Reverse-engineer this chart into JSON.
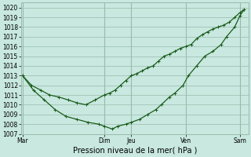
{
  "bg_color": "#c8e8e0",
  "plot_bg_color": "#c8e8e0",
  "line_color": "#1a5c1a",
  "grid_color": "#99bbaa",
  "xlabel": "Pression niveau de la mer( hPa )",
  "ylim": [
    1007,
    1020.5
  ],
  "ytick_vals": [
    1007,
    1008,
    1009,
    1010,
    1011,
    1012,
    1013,
    1014,
    1015,
    1016,
    1017,
    1018,
    1019,
    1020
  ],
  "xtick_labels": [
    "Mar",
    "",
    "Dim",
    "Jeu",
    "",
    "Ven",
    "",
    "Sam"
  ],
  "xtick_positions": [
    0,
    1.5,
    3,
    4,
    5,
    6,
    7,
    8
  ],
  "vlines_x": [
    0,
    3,
    4,
    6,
    8
  ],
  "line1_x": [
    0.0,
    0.33,
    0.67,
    1.0,
    1.33,
    1.67,
    2.0,
    2.33,
    2.67,
    3.0,
    3.2,
    3.4,
    3.6,
    3.8,
    4.0,
    4.2,
    4.4,
    4.6,
    4.8,
    5.0,
    5.2,
    5.4,
    5.6,
    5.8,
    6.0,
    6.2,
    6.4,
    6.6,
    6.8,
    7.0,
    7.2,
    7.4,
    7.6,
    7.8,
    8.0,
    8.15
  ],
  "line1_y": [
    1013.0,
    1012.0,
    1011.5,
    1011.0,
    1010.8,
    1010.5,
    1010.2,
    1010.0,
    1010.5,
    1011.0,
    1011.2,
    1011.5,
    1012.0,
    1012.5,
    1013.0,
    1013.2,
    1013.5,
    1013.8,
    1014.0,
    1014.5,
    1015.0,
    1015.2,
    1015.5,
    1015.8,
    1016.0,
    1016.2,
    1016.8,
    1017.2,
    1017.5,
    1017.8,
    1018.0,
    1018.2,
    1018.5,
    1019.0,
    1019.5,
    1019.8
  ],
  "line2_x": [
    0.0,
    0.4,
    0.8,
    1.2,
    1.6,
    2.0,
    2.4,
    2.8,
    3.0,
    3.3,
    3.5,
    3.8,
    4.0,
    4.3,
    4.6,
    4.9,
    5.1,
    5.4,
    5.6,
    5.9,
    6.1,
    6.4,
    6.7,
    7.0,
    7.3,
    7.5,
    7.8,
    8.0,
    8.15
  ],
  "line2_y": [
    1013.0,
    1011.5,
    1010.5,
    1009.5,
    1008.8,
    1008.5,
    1008.2,
    1008.0,
    1007.8,
    1007.5,
    1007.8,
    1008.0,
    1008.2,
    1008.5,
    1009.0,
    1009.5,
    1010.0,
    1010.8,
    1011.2,
    1012.0,
    1013.0,
    1014.0,
    1015.0,
    1015.5,
    1016.2,
    1017.0,
    1018.0,
    1019.2,
    1019.8
  ],
  "xlabel_fontsize": 7,
  "ytick_fontsize": 5.5,
  "xtick_fontsize": 5.5
}
